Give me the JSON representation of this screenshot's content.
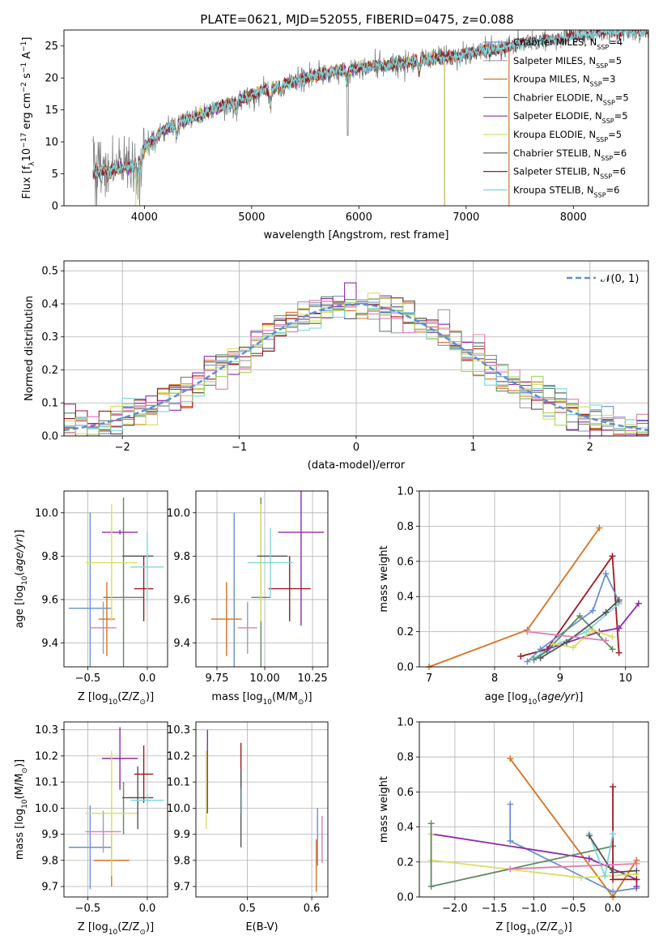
{
  "figure": {
    "title": "PLATE=0621, MJD=52055, FIBERID=0475, z=0.088"
  },
  "colors": {
    "chab_miles": "#6a8fd0",
    "salp_miles": "#9aa0a6",
    "krou_miles": "#d9711f",
    "chab_elodie": "#5f8a62",
    "salp_elodie": "#8f2aa8",
    "krou_elodie": "#d8e05a",
    "chab_stelib": "#555555",
    "salp_stelib": "#a01820",
    "krou_stelib": "#7fd6da",
    "pink": "#e07db2",
    "green_light": "#a8d45f",
    "gaussian": "#5b8fd6"
  },
  "chart_data": [
    {
      "id": "spectrum",
      "type": "line",
      "xlabel": "wavelength [Angstrom, rest frame]",
      "ylabel": "Flux [fλ10⁻¹⁷ erg cm⁻² s⁻¹ A⁻¹]",
      "xlim": [
        3250,
        8700
      ],
      "ylim": [
        0,
        27.5
      ],
      "xticks": [
        4000,
        5000,
        6000,
        7000,
        8000
      ],
      "yticks": [
        0,
        5,
        10,
        15,
        20,
        25
      ],
      "grid": false,
      "legend": "right",
      "legend_entries": [
        "Chabrier MILES, N_SSP=4",
        "Salpeter MILES, N_SSP=5",
        "Kroupa MILES, N_SSP=3",
        "Chabrier ELODIE, N_SSP=5",
        "Salpeter ELODIE, N_SSP=5",
        "Kroupa ELODIE, N_SSP=5",
        "Chabrier STELIB, N_SSP=6",
        "Salpeter STELIB, N_SSP=6",
        "Kroupa STELIB, N_SSP=6"
      ],
      "continuum": {
        "x": [
          3530,
          3700,
          3900,
          4000,
          4100,
          4300,
          4500,
          4700,
          4900,
          5100,
          5300,
          5500,
          5700,
          5900,
          6100,
          6300,
          6500,
          6700,
          6900,
          7100,
          7300,
          7500,
          7700,
          7900,
          8100,
          8300
        ],
        "y": [
          5.2,
          5.6,
          6.3,
          9.0,
          11.0,
          12.8,
          14.0,
          15.4,
          16.6,
          18.0,
          19.0,
          20.0,
          20.8,
          21.3,
          21.7,
          22.0,
          22.6,
          23.0,
          23.4,
          24.1,
          24.5,
          25.3,
          25.9,
          26.3,
          26.7,
          27.3
        ]
      }
    },
    {
      "id": "residuals",
      "type": "step",
      "xlabel": "(data-model)/error",
      "ylabel": "Normed distribution",
      "xlim": [
        -2.5,
        2.5
      ],
      "ylim": [
        0,
        0.53
      ],
      "xticks": [
        -2,
        -1,
        0,
        1,
        2
      ],
      "yticks": [
        0.0,
        0.1,
        0.2,
        0.3,
        0.4,
        0.5
      ],
      "grid": true,
      "legend": "top-right",
      "legend_entries": [
        "𝒩(0, 1)"
      ]
    },
    {
      "id": "age_vs_Z",
      "type": "errorbar",
      "xlabel": "Z [log10(Z/Z⊙)]",
      "ylabel": "age  [log10(age/yr)]",
      "xlim": [
        -0.7,
        0.17
      ],
      "ylim": [
        9.29,
        10.1
      ],
      "xticks": [
        -0.5,
        0.0
      ],
      "yticks": [
        9.4,
        9.6,
        9.8,
        10.0
      ],
      "grid": true,
      "points": [
        {
          "series": "chab_miles",
          "x": -0.48,
          "y": 9.56,
          "xerr": 0.18,
          "yerr": 0.44
        },
        {
          "series": "salp_miles",
          "x": -0.37,
          "y": 9.47,
          "xerr": 0.0,
          "yerr": 0.12
        },
        {
          "series": "krou_miles",
          "x": -0.34,
          "y": 9.51,
          "xerr": 0.07,
          "yerr": 0.17
        },
        {
          "series": "chab_elodie",
          "x": -0.2,
          "y": 9.61,
          "xerr": 0.17,
          "yerr": 0.46
        },
        {
          "series": "salp_elodie",
          "x": -0.23,
          "y": 9.91,
          "xerr": 0.15,
          "yerr": 0.01
        },
        {
          "series": "krou_elodie",
          "x": -0.3,
          "y": 9.77,
          "xerr": 0.22,
          "yerr": 0.27
        },
        {
          "series": "chab_stelib",
          "x": -0.08,
          "y": 9.8,
          "xerr": 0.13,
          "yerr": 0.0
        },
        {
          "series": "salp_stelib",
          "x": -0.03,
          "y": 9.65,
          "xerr": 0.08,
          "yerr": 0.15
        },
        {
          "series": "krou_stelib",
          "x": 0.0,
          "y": 9.75,
          "xerr": 0.14,
          "yerr": 0.16
        },
        {
          "series": "pink",
          "x": -0.37,
          "y": 9.47,
          "xerr": 0.11,
          "yerr": 0.0
        }
      ]
    },
    {
      "id": "age_vs_mass",
      "type": "errorbar",
      "xlabel": "mass [log10(M/M⊙)]",
      "ylabel": "",
      "xlim": [
        9.64,
        10.33
      ],
      "ylim": [
        9.29,
        10.1
      ],
      "xticks": [
        9.75,
        10.0,
        10.25
      ],
      "yticks": [
        9.4,
        9.6,
        9.8,
        10.0
      ],
      "grid": true,
      "points": [
        {
          "series": "chab_miles",
          "x": 9.84,
          "y": 9.56,
          "xerr": 0.0,
          "yerr": 0.44
        },
        {
          "series": "salp_miles",
          "x": 9.91,
          "y": 9.47,
          "xerr": 0.0,
          "yerr": 0.12
        },
        {
          "series": "krou_miles",
          "x": 9.8,
          "y": 9.51,
          "xerr": 0.08,
          "yerr": 0.17
        },
        {
          "series": "chab_elodie",
          "x": 9.98,
          "y": 9.61,
          "xerr": 0.05,
          "yerr": 0.46
        },
        {
          "series": "salp_elodie",
          "x": 10.19,
          "y": 9.91,
          "xerr": 0.12,
          "yerr": 0.43
        },
        {
          "series": "krou_elodie",
          "x": 9.98,
          "y": 9.77,
          "xerr": 0.0,
          "yerr": 0.27
        },
        {
          "series": "chab_stelib",
          "x": 10.04,
          "y": 9.8,
          "xerr": 0.08,
          "yerr": 0.0
        },
        {
          "series": "salp_stelib",
          "x": 10.13,
          "y": 9.65,
          "xerr": 0.11,
          "yerr": 0.15
        },
        {
          "series": "krou_stelib",
          "x": 10.03,
          "y": 9.77,
          "xerr": 0.12,
          "yerr": 0.16
        },
        {
          "series": "pink",
          "x": 9.91,
          "y": 9.47,
          "xerr": 0.05,
          "yerr": 0.0
        }
      ]
    },
    {
      "id": "weight_vs_age",
      "type": "line",
      "xlabel": "age  [log10(age/yr)]",
      "ylabel": "mass weight",
      "xlim": [
        6.85,
        10.35
      ],
      "ylim": [
        0,
        1.0
      ],
      "xticks": [
        7,
        8,
        9,
        10
      ],
      "yticks": [
        0.0,
        0.2,
        0.4,
        0.6,
        0.8,
        1.0
      ],
      "grid": true,
      "series": [
        {
          "series": "krou_miles",
          "x": [
            7.0,
            8.5,
            9.6
          ],
          "y": [
            0.0,
            0.21,
            0.79
          ]
        },
        {
          "series": "salp_stelib",
          "x": [
            8.4,
            8.8,
            9.8,
            9.9
          ],
          "y": [
            0.06,
            0.1,
            0.63,
            0.08
          ]
        },
        {
          "series": "chab_miles",
          "x": [
            8.5,
            8.7,
            9.5,
            9.7,
            9.9
          ],
          "y": [
            0.03,
            0.1,
            0.32,
            0.53,
            0.37
          ]
        },
        {
          "series": "krou_stelib",
          "x": [
            8.6,
            8.9,
            9.4,
            9.9
          ],
          "y": [
            0.05,
            0.12,
            0.2,
            0.36
          ]
        },
        {
          "series": "chab_elodie",
          "x": [
            8.6,
            8.8,
            9.3,
            9.8
          ],
          "y": [
            0.04,
            0.09,
            0.29,
            0.1
          ]
        },
        {
          "series": "salp_elodie",
          "x": [
            8.8,
            9.6,
            9.9,
            10.2
          ],
          "y": [
            0.1,
            0.2,
            0.22,
            0.36
          ]
        },
        {
          "series": "krou_elodie",
          "x": [
            8.9,
            9.2,
            9.5,
            9.8
          ],
          "y": [
            0.13,
            0.11,
            0.21,
            0.17
          ]
        },
        {
          "series": "chab_stelib",
          "x": [
            8.7,
            9.1,
            9.7,
            9.9
          ],
          "y": [
            0.05,
            0.14,
            0.31,
            0.38
          ]
        },
        {
          "series": "pink",
          "x": [
            8.5,
            9.7
          ],
          "y": [
            0.2,
            0.15
          ]
        }
      ]
    },
    {
      "id": "mass_vs_Z",
      "type": "errorbar",
      "xlabel": "Z [log10(Z/Z⊙)]",
      "ylabel": "mass [log10(M/M⊙)]",
      "xlim": [
        -0.7,
        0.17
      ],
      "ylim": [
        9.66,
        10.33
      ],
      "xticks": [
        -0.5,
        0.0
      ],
      "yticks": [
        9.7,
        9.8,
        9.9,
        10.0,
        10.1,
        10.2,
        10.3
      ],
      "grid": true,
      "points": [
        {
          "series": "chab_miles",
          "x": -0.48,
          "y": 9.85,
          "xerr": 0.18,
          "yerr": 0.16
        },
        {
          "series": "salp_miles",
          "x": -0.37,
          "y": 9.91,
          "xerr": 0.0,
          "yerr": 0.08
        },
        {
          "series": "krou_miles",
          "x": -0.3,
          "y": 9.8,
          "xerr": 0.15,
          "yerr": 0.1
        },
        {
          "series": "chab_elodie",
          "x": -0.2,
          "y": 10.0,
          "xerr": 0.0,
          "yerr": 0.1
        },
        {
          "series": "salp_elodie",
          "x": -0.23,
          "y": 10.19,
          "xerr": 0.15,
          "yerr": 0.12
        },
        {
          "series": "krou_elodie",
          "x": -0.3,
          "y": 9.98,
          "xerr": 0.22,
          "yerr": 0.24
        },
        {
          "series": "chab_stelib",
          "x": -0.08,
          "y": 10.04,
          "xerr": 0.13,
          "yerr": 0.12
        },
        {
          "series": "salp_stelib",
          "x": -0.03,
          "y": 10.13,
          "xerr": 0.08,
          "yerr": 0.11
        },
        {
          "series": "krou_stelib",
          "x": 0.0,
          "y": 10.03,
          "xerr": 0.14,
          "yerr": 0.02
        },
        {
          "series": "pink",
          "x": -0.37,
          "y": 9.91,
          "xerr": 0.15,
          "yerr": 0.0
        }
      ]
    },
    {
      "id": "mass_vs_ebv",
      "type": "errorbar",
      "xlabel": "E(B-V)",
      "ylabel": "",
      "xlim": [
        0.42,
        0.625
      ],
      "ylim": [
        9.66,
        10.33
      ],
      "xticks": [
        0.5,
        0.6
      ],
      "yticks": [
        9.7,
        9.8,
        9.9,
        10.0,
        10.1,
        10.2,
        10.3
      ],
      "grid": true,
      "points": [
        {
          "series": "salp_elodie",
          "x": 0.438,
          "y": 10.14,
          "xerr": 0.0,
          "yerr": 0.16
        },
        {
          "series": "krou_elodie",
          "x": 0.436,
          "y": 10.07,
          "xerr": 0.0,
          "yerr": 0.15
        },
        {
          "series": "salp_stelib",
          "x": 0.49,
          "y": 10.16,
          "xerr": 0.0,
          "yerr": 0.09
        },
        {
          "series": "chab_stelib",
          "x": 0.49,
          "y": 10.0,
          "xerr": 0.0,
          "yerr": 0.15
        },
        {
          "series": "krou_stelib",
          "x": 0.491,
          "y": 10.03,
          "xerr": 0.0,
          "yerr": 0.05
        },
        {
          "series": "chab_miles",
          "x": 0.609,
          "y": 9.89,
          "xerr": 0.0,
          "yerr": 0.11
        },
        {
          "series": "krou_miles",
          "x": 0.607,
          "y": 9.78,
          "xerr": 0.0,
          "yerr": 0.1
        },
        {
          "series": "pink",
          "x": 0.616,
          "y": 9.88,
          "xerr": 0.0,
          "yerr": 0.09
        }
      ]
    },
    {
      "id": "weight_vs_Z",
      "type": "line",
      "xlabel": "Z [log10(Z/Z⊙)]",
      "ylabel": "mass weight",
      "xlim": [
        -2.45,
        0.45
      ],
      "ylim": [
        0,
        1.0
      ],
      "xticks": [
        -2.0,
        -1.5,
        -1.0,
        -0.5,
        0.0
      ],
      "yticks": [
        0.0,
        0.2,
        0.4,
        0.6,
        0.8,
        1.0
      ],
      "grid": true,
      "series": [
        {
          "series": "krou_miles",
          "x": [
            -1.3,
            0.0,
            0.3
          ],
          "y": [
            0.79,
            0.0,
            0.21
          ]
        },
        {
          "series": "chab_miles",
          "x": [
            -1.3,
            -1.3,
            0.0,
            0.3
          ],
          "y": [
            0.53,
            0.32,
            0.03,
            0.05
          ]
        },
        {
          "series": "salp_elodie",
          "x": [
            -2.3,
            -0.3,
            0.3,
            0.3
          ],
          "y": [
            0.36,
            0.22,
            0.1,
            0.06
          ]
        },
        {
          "series": "krou_elodie",
          "x": [
            -2.3,
            -2.3,
            -0.4,
            0.3
          ],
          "y": [
            0.36,
            0.21,
            0.11,
            0.13
          ]
        },
        {
          "series": "chab_elodie",
          "x": [
            -2.3,
            -2.3,
            0.0
          ],
          "y": [
            0.42,
            0.06,
            0.29
          ]
        },
        {
          "series": "salp_stelib",
          "x": [
            0.0,
            0.0,
            0.3
          ],
          "y": [
            0.63,
            0.1,
            0.1
          ]
        },
        {
          "series": "krou_stelib",
          "x": [
            -0.3,
            -0.1,
            0.0
          ],
          "y": [
            0.36,
            0.12,
            0.36
          ]
        },
        {
          "series": "chab_stelib",
          "x": [
            -0.3,
            0.0,
            0.3
          ],
          "y": [
            0.35,
            0.14,
            0.15
          ]
        },
        {
          "series": "pink",
          "x": [
            -1.3,
            0.3
          ],
          "y": [
            0.16,
            0.19
          ]
        }
      ]
    }
  ]
}
